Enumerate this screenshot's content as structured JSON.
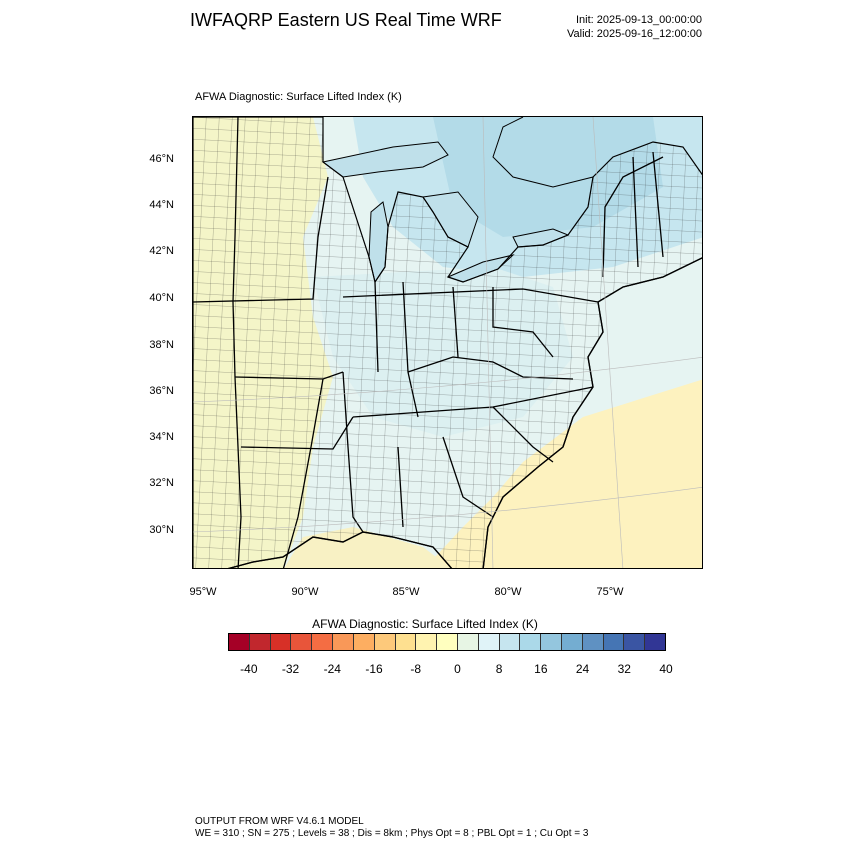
{
  "header": {
    "title": "IWFAQRP Eastern US Real Time WRF",
    "init": "Init: 2025-09-13_00:00:00",
    "valid": "Valid: 2025-09-16_12:00:00"
  },
  "map": {
    "subtitle": "AFWA Diagnostic: Surface Lifted Index   (K)",
    "lat_labels": [
      "46°N",
      "44°N",
      "42°N",
      "40°N",
      "38°N",
      "36°N",
      "34°N",
      "32°N",
      "30°N"
    ],
    "lon_labels": [
      "95°W",
      "90°W",
      "85°W",
      "80°W",
      "75°W"
    ],
    "colors": {
      "ocean_south": "#fdf3c0",
      "land_west": "#f6f6c8",
      "land_central": "#d8eef0",
      "lakes_region": "#b9dde8",
      "border": "#000000"
    }
  },
  "colorbar": {
    "title": "AFWA Diagnostic: Surface Lifted Index  (K)",
    "tick_labels": [
      "-40",
      "-32",
      "-24",
      "-16",
      "-8",
      "0",
      "8",
      "16",
      "24",
      "32",
      "40"
    ],
    "colors": [
      "#a50026",
      "#c1272d",
      "#d73027",
      "#e8553a",
      "#f46d43",
      "#f99858",
      "#fdae61",
      "#fdc97b",
      "#fee090",
      "#fff3b0",
      "#ffffbf",
      "#e7f5e4",
      "#e0f3f8",
      "#c6e5ef",
      "#abd9e9",
      "#94c6de",
      "#74add1",
      "#5f91c2",
      "#4575b4",
      "#3a55a3",
      "#313695"
    ]
  },
  "footer": {
    "line1": "OUTPUT FROM WRF V4.6.1 MODEL",
    "line2": "WE = 310 ; SN = 275 ; Levels = 38 ; Dis = 8km ; Phys Opt = 8 ; PBL Opt = 1 ; Cu Opt = 3"
  }
}
